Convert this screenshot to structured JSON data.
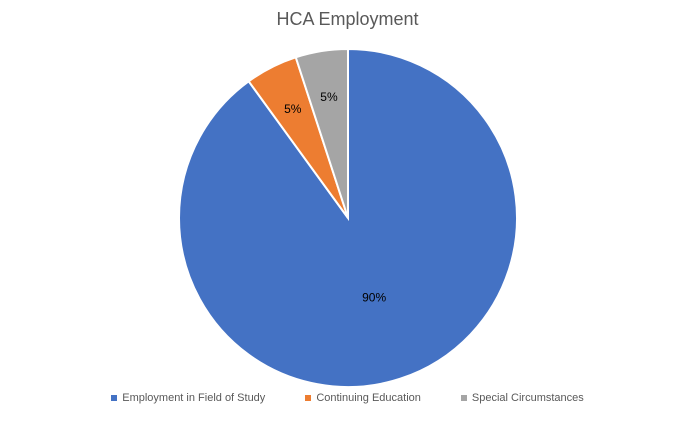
{
  "chart_data": {
    "type": "pie",
    "title": "HCA Employment",
    "categories": [
      "Employment in Field of Study",
      "Continuing Education",
      "Special Circumstances"
    ],
    "values": [
      90,
      5,
      5
    ],
    "data_labels": [
      "90%",
      "5%",
      "5%"
    ],
    "colors": [
      "#4472C4",
      "#ED7D31",
      "#A5A5A5"
    ],
    "legend_position": "bottom",
    "start_angle_deg": 0,
    "direction": "clockwise"
  }
}
